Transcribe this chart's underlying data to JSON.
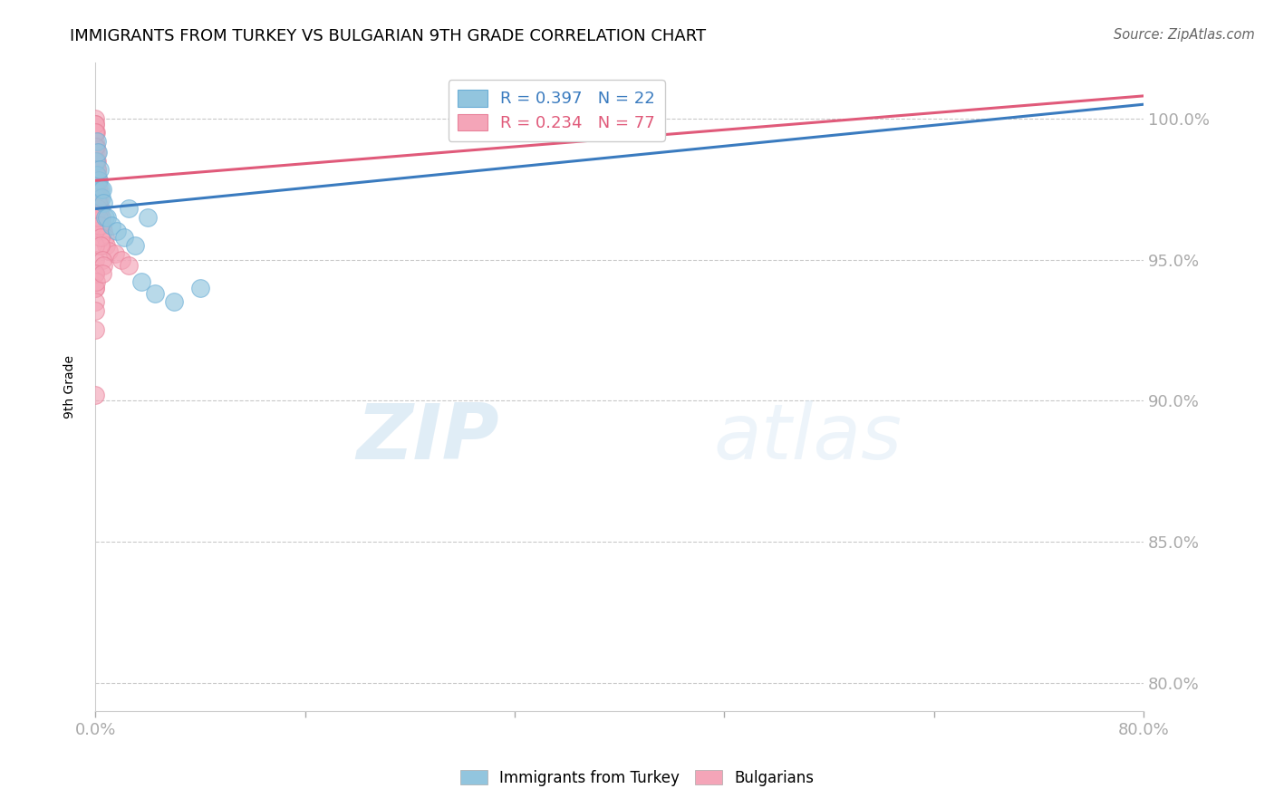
{
  "title": "IMMIGRANTS FROM TURKEY VS BULGARIAN 9TH GRADE CORRELATION CHART",
  "source": "Source: ZipAtlas.com",
  "ylabel": "9th Grade",
  "watermark_zip": "ZIP",
  "watermark_atlas": "atlas",
  "blue_R": 0.397,
  "blue_N": 22,
  "pink_R": 0.234,
  "pink_N": 77,
  "blue_label": "Immigrants from Turkey",
  "pink_label": "Bulgarians",
  "blue_color": "#92c5de",
  "pink_color": "#f4a5b8",
  "blue_edge_color": "#6baed6",
  "pink_edge_color": "#e8819a",
  "blue_trend_color": "#3a7bbf",
  "pink_trend_color": "#e05a7a",
  "axis_label_color": "#4472c4",
  "xlim": [
    0.0,
    80.0
  ],
  "ylim": [
    79.0,
    102.0
  ],
  "yticks": [
    80.0,
    85.0,
    90.0,
    95.0,
    100.0
  ],
  "ytick_labels": [
    "80.0%",
    "85.0%",
    "90.0%",
    "95.0%",
    "100.0%"
  ],
  "blue_trend_x0": 0.0,
  "blue_trend_y0": 96.8,
  "blue_trend_x1": 80.0,
  "blue_trend_y1": 100.5,
  "pink_trend_x0": 0.0,
  "pink_trend_y0": 97.8,
  "pink_trend_x1": 80.0,
  "pink_trend_y1": 100.8,
  "blue_x": [
    0.05,
    0.08,
    0.12,
    0.18,
    0.22,
    0.28,
    0.35,
    0.42,
    0.5,
    0.6,
    0.7,
    0.9,
    1.2,
    1.6,
    2.2,
    3.0,
    3.5,
    4.5,
    6.0,
    8.0,
    2.5,
    4.0
  ],
  "blue_y": [
    98.5,
    98.0,
    99.2,
    98.8,
    97.8,
    98.2,
    97.5,
    97.2,
    97.5,
    97.0,
    96.5,
    96.5,
    96.2,
    96.0,
    95.8,
    95.5,
    94.2,
    93.8,
    93.5,
    94.0,
    96.8,
    96.5
  ],
  "pink_x": [
    0.0,
    0.0,
    0.0,
    0.0,
    0.0,
    0.0,
    0.0,
    0.0,
    0.0,
    0.0,
    0.0,
    0.0,
    0.0,
    0.0,
    0.0,
    0.05,
    0.05,
    0.05,
    0.08,
    0.08,
    0.1,
    0.1,
    0.12,
    0.12,
    0.15,
    0.15,
    0.18,
    0.2,
    0.2,
    0.25,
    0.25,
    0.3,
    0.3,
    0.35,
    0.4,
    0.45,
    0.5,
    0.6,
    0.7,
    0.8,
    1.0,
    1.5,
    2.0,
    2.5,
    0.0,
    0.0,
    0.0,
    0.0,
    0.0,
    0.0,
    0.0,
    0.0,
    0.0,
    0.0,
    0.0,
    0.0,
    0.0,
    0.05,
    0.05,
    0.1,
    0.1,
    0.15,
    0.2,
    0.25,
    0.3,
    0.35,
    0.4,
    0.5,
    0.6,
    0.0,
    0.0,
    0.0,
    0.05,
    0.0,
    0.0,
    0.0,
    0.5
  ],
  "pink_y": [
    100.0,
    99.8,
    99.5,
    99.2,
    99.0,
    98.8,
    98.5,
    98.2,
    97.9,
    97.6,
    97.4,
    97.1,
    96.8,
    96.5,
    96.2,
    99.5,
    99.0,
    98.5,
    98.8,
    98.2,
    98.5,
    98.0,
    98.2,
    97.8,
    97.8,
    97.4,
    97.5,
    97.8,
    97.2,
    97.5,
    97.0,
    97.2,
    96.8,
    96.8,
    96.5,
    96.5,
    96.2,
    96.0,
    95.8,
    95.5,
    95.3,
    95.2,
    95.0,
    94.8,
    99.8,
    99.5,
    99.0,
    98.5,
    98.0,
    97.5,
    97.0,
    96.5,
    96.0,
    95.5,
    95.0,
    94.5,
    94.0,
    98.0,
    97.5,
    97.8,
    97.2,
    97.0,
    96.8,
    96.5,
    96.2,
    95.8,
    95.5,
    95.0,
    94.8,
    94.5,
    94.0,
    93.5,
    94.2,
    92.5,
    93.2,
    90.2,
    94.5
  ]
}
